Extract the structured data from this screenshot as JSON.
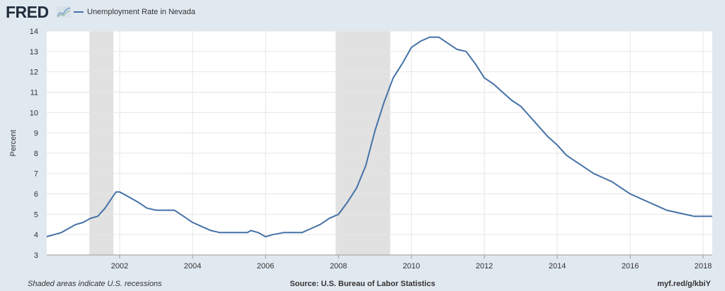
{
  "header": {
    "logo_text": "FRED",
    "logo_mark_icon": "chart-spark-icon",
    "legend_label": "Unemployment Rate in Nevada"
  },
  "footer": {
    "recession_note": "Shaded areas indicate U.S. recessions",
    "source": "Source: U.S. Bureau of Labor Statistics",
    "link": "myf.red/g/kbiY"
  },
  "colors": {
    "series": "#4572a7",
    "recession": "#e1e1e1",
    "background": "#e1e9f0",
    "plot_background": "#ffffff",
    "grid": "#e6e6e6"
  },
  "chart_data": {
    "type": "line",
    "title": "",
    "xlabel": "",
    "ylabel": "Percent",
    "xlim": [
      2000.0,
      2018.25
    ],
    "ylim": [
      3,
      14
    ],
    "grid": true,
    "legend_position": "top-left",
    "x_ticks": [
      2002,
      2004,
      2006,
      2008,
      2010,
      2012,
      2014,
      2016,
      2018
    ],
    "y_ticks": [
      3,
      4,
      5,
      6,
      7,
      8,
      9,
      10,
      11,
      12,
      13,
      14
    ],
    "recessions": [
      {
        "start": 2001.17,
        "end": 2001.83
      },
      {
        "start": 2007.92,
        "end": 2009.42
      }
    ],
    "series": [
      {
        "name": "Unemployment Rate in Nevada",
        "x": [
          2000.0,
          2000.2,
          2000.4,
          2000.6,
          2000.8,
          2001.0,
          2001.2,
          2001.4,
          2001.6,
          2001.75,
          2001.9,
          2002.0,
          2002.2,
          2002.5,
          2002.75,
          2003.0,
          2003.5,
          2003.75,
          2004.0,
          2004.25,
          2004.5,
          2004.75,
          2005.0,
          2005.5,
          2005.6,
          2005.8,
          2006.0,
          2006.2,
          2006.5,
          2006.75,
          2007.0,
          2007.25,
          2007.5,
          2007.75,
          2008.0,
          2008.25,
          2008.5,
          2008.75,
          2009.0,
          2009.25,
          2009.5,
          2009.75,
          2010.0,
          2010.25,
          2010.5,
          2010.75,
          2011.0,
          2011.25,
          2011.5,
          2011.75,
          2012.0,
          2012.25,
          2012.5,
          2012.75,
          2013.0,
          2013.25,
          2013.5,
          2013.75,
          2014.0,
          2014.25,
          2014.5,
          2014.75,
          2015.0,
          2015.25,
          2015.5,
          2015.75,
          2016.0,
          2016.25,
          2016.5,
          2016.75,
          2017.0,
          2017.25,
          2017.5,
          2017.75,
          2018.0,
          2018.25
        ],
        "values": [
          3.9,
          4.0,
          4.1,
          4.3,
          4.5,
          4.6,
          4.8,
          4.9,
          5.3,
          5.7,
          6.1,
          6.1,
          5.9,
          5.6,
          5.3,
          5.2,
          5.2,
          4.9,
          4.6,
          4.4,
          4.2,
          4.1,
          4.1,
          4.1,
          4.2,
          4.1,
          3.9,
          4.0,
          4.1,
          4.1,
          4.1,
          4.3,
          4.5,
          4.8,
          5.0,
          5.6,
          6.3,
          7.4,
          9.1,
          10.5,
          11.7,
          12.4,
          13.2,
          13.5,
          13.7,
          13.7,
          13.4,
          13.1,
          13.0,
          12.4,
          11.7,
          11.4,
          11.0,
          10.6,
          10.3,
          9.8,
          9.3,
          8.8,
          8.4,
          7.9,
          7.6,
          7.3,
          7.0,
          6.8,
          6.6,
          6.3,
          6.0,
          5.8,
          5.6,
          5.4,
          5.2,
          5.1,
          5.0,
          4.9,
          4.9,
          4.9
        ]
      }
    ]
  }
}
